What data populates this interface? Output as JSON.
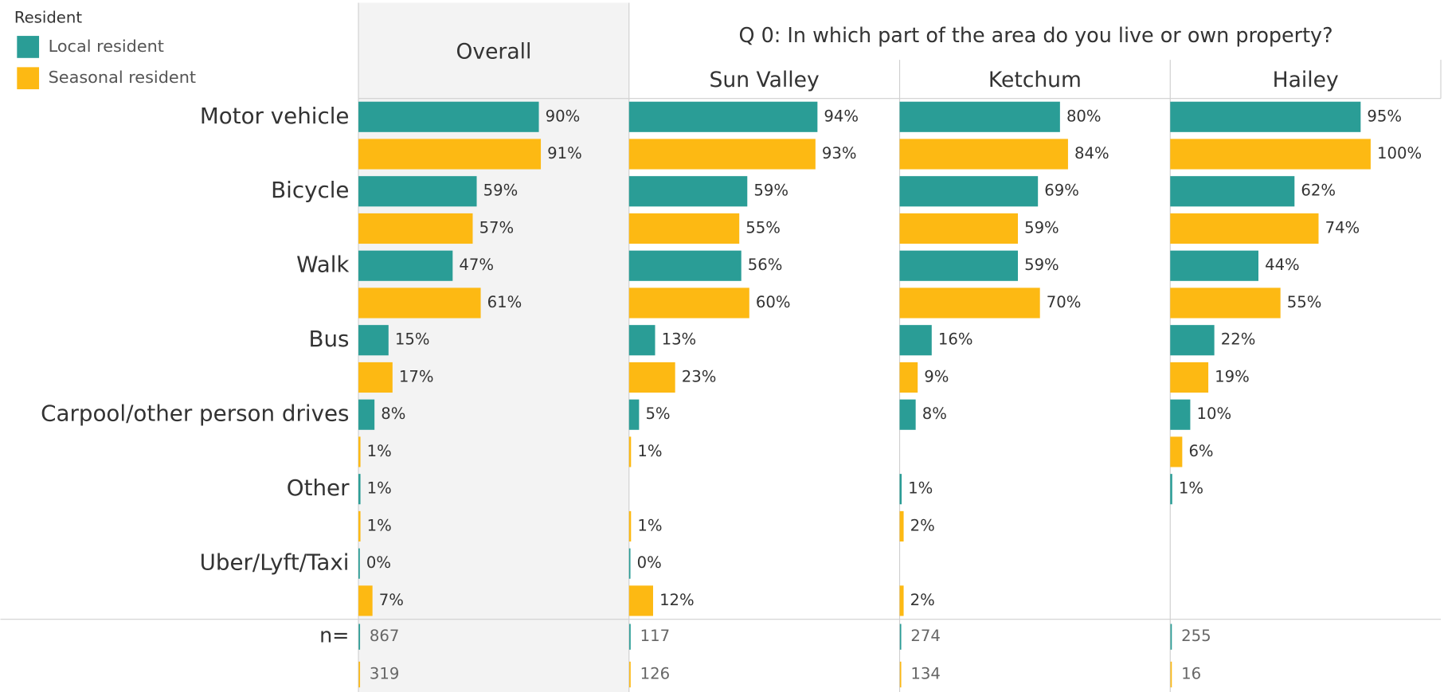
{
  "chart_data": {
    "type": "bar",
    "legend_title": "Resident",
    "title": "Q 0: In which part of the area do you live or own property?",
    "categories": [
      "Motor vehicle",
      "Bicycle",
      "Walk",
      "Bus",
      "Carpool/other person drives",
      "Other",
      "Uber/Lyft/Taxi"
    ],
    "n_label": "n=",
    "xlim": [
      0,
      135
    ],
    "legend": [
      {
        "name": "Local resident",
        "color": "#2a9d96"
      },
      {
        "name": "Seasonal resident",
        "color": "#fdb913"
      }
    ],
    "panels": [
      {
        "name": "Overall",
        "series": [
          {
            "values": [
              90,
              59,
              47,
              15,
              8,
              1,
              0
            ],
            "value_labels": [
              "90%",
              "59%",
              "47%",
              "15%",
              "8%",
              "1%",
              "0%"
            ],
            "n": 867
          },
          {
            "values": [
              91,
              57,
              61,
              17,
              1,
              1,
              7
            ],
            "value_labels": [
              "91%",
              "57%",
              "61%",
              "17%",
              "1%",
              "1%",
              "7%"
            ],
            "n": 319
          }
        ]
      },
      {
        "name": "Sun Valley",
        "series": [
          {
            "values": [
              94,
              59,
              56,
              13,
              5,
              null,
              0
            ],
            "value_labels": [
              "94%",
              "59%",
              "56%",
              "13%",
              "5%",
              null,
              "0%"
            ],
            "n": 117
          },
          {
            "values": [
              93,
              55,
              60,
              23,
              1,
              1,
              12
            ],
            "value_labels": [
              "93%",
              "55%",
              "60%",
              "23%",
              "1%",
              "1%",
              "12%"
            ],
            "n": 126
          }
        ]
      },
      {
        "name": "Ketchum",
        "series": [
          {
            "values": [
              80,
              69,
              59,
              16,
              8,
              1,
              null
            ],
            "value_labels": [
              "80%",
              "69%",
              "59%",
              "16%",
              "8%",
              "1%",
              null
            ],
            "n": 274
          },
          {
            "values": [
              84,
              59,
              70,
              9,
              null,
              2,
              2
            ],
            "value_labels": [
              "84%",
              "59%",
              "70%",
              "9%",
              null,
              "2%",
              "2%"
            ],
            "n": 134
          }
        ]
      },
      {
        "name": "Hailey",
        "series": [
          {
            "values": [
              95,
              62,
              44,
              22,
              10,
              1,
              null
            ],
            "value_labels": [
              "95%",
              "62%",
              "44%",
              "22%",
              "10%",
              "1%",
              null
            ],
            "n": 255
          },
          {
            "values": [
              100,
              74,
              55,
              19,
              6,
              null,
              null
            ],
            "value_labels": [
              "100%",
              "74%",
              "55%",
              "19%",
              "6%",
              null,
              null
            ],
            "n": 16
          }
        ]
      }
    ]
  }
}
